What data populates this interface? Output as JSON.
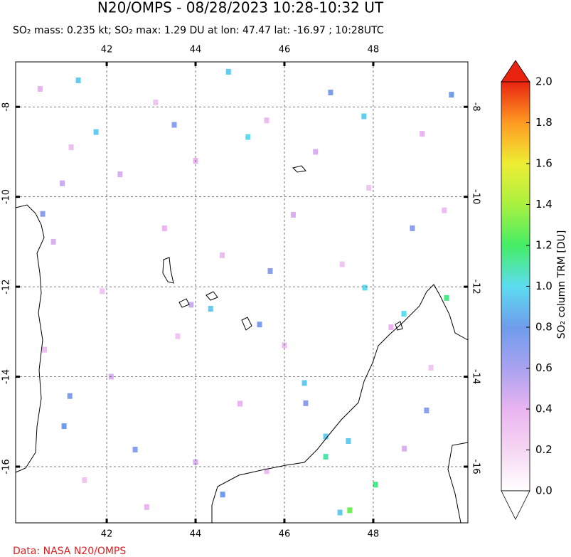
{
  "chart_data": {
    "type": "map",
    "title": "N20/OMPS - 08/28/2023 10:28-10:32 UT",
    "subtitle": "SO₂ mass: 0.235 kt; SO₂ max: 1.29 DU at lon: 47.47 lat: -16.97 ; 10:28UTC",
    "source": "Data: NASA N20/OMPS",
    "xlim": [
      39.95,
      50.13
    ],
    "ylim": [
      -17.25,
      -7.0
    ],
    "xticks": [
      42,
      44,
      46,
      48
    ],
    "yticks": [
      -8,
      -10,
      -12,
      -14,
      -16
    ],
    "grid": true,
    "colorbar": {
      "label": "SO₂ column TRM [DU]",
      "lim": [
        0,
        2
      ],
      "ticks": [
        {
          "value": 0,
          "label": "0.0"
        },
        0.2,
        0.4,
        0.6,
        0.8,
        {
          "value": 1,
          "label": "1.0"
        },
        1.2,
        1.4,
        1.6,
        1.8,
        {
          "value": 2,
          "label": "2.0"
        }
      ],
      "colors": [
        "#ffffff",
        "#f6d6f2",
        "#e9b4f0",
        "#a9a2f0",
        "#6f9cec",
        "#5cdcf0",
        "#44ee66",
        "#aaf040",
        "#eeee33",
        "#ff9a22",
        "#e82410"
      ]
    },
    "pixels": {
      "x": [
        41.36,
        44.74,
        45.18,
        41.76,
        47.79,
        49.76,
        44.34,
        47.81,
        48.69,
        49.65,
        41.17,
        41.04,
        46.45,
        46.93,
        47.44,
        46.93,
        48.05,
        47.47,
        47.25,
        44.61,
        45.44,
        42.64,
        49.2,
        46.48,
        47.04,
        43.52,
        45.68,
        48.88,
        40.56,
        40.5,
        41.2,
        42.3,
        43.1,
        44.0,
        45.6,
        46.7,
        47.9,
        49.1,
        49.6,
        40.8,
        41.9,
        43.3,
        44.6,
        46.2,
        47.3,
        48.4,
        40.6,
        42.1,
        43.6,
        45.0,
        46.0,
        44.0,
        41.5,
        42.9,
        45.6,
        48.7,
        49.3,
        41.0,
        43.9
      ],
      "y": [
        -7.41,
        -7.22,
        -8.67,
        -8.56,
        -8.21,
        -7.73,
        -12.49,
        -12.02,
        -12.6,
        -12.25,
        -14.43,
        -15.1,
        -14.14,
        -15.33,
        -15.43,
        -15.78,
        -16.4,
        -16.97,
        -17.02,
        -16.62,
        -12.84,
        -15.62,
        -14.75,
        -14.59,
        -7.68,
        -8.4,
        -11.65,
        -10.7,
        -10.38,
        -7.6,
        -8.9,
        -9.5,
        -7.9,
        -9.2,
        -8.3,
        -9.0,
        -9.8,
        -8.6,
        -10.3,
        -11.0,
        -12.1,
        -10.7,
        -11.3,
        -10.4,
        -11.5,
        -12.9,
        -13.4,
        -14.0,
        -13.1,
        -14.6,
        -13.3,
        -15.9,
        -16.3,
        -16.9,
        -16.1,
        -15.6,
        -13.8,
        -9.7,
        -12.4
      ],
      "values": [
        0.95,
        0.95,
        1.0,
        0.95,
        0.95,
        0.8,
        0.95,
        1.0,
        1.0,
        1.15,
        0.75,
        0.8,
        0.95,
        0.95,
        0.95,
        1.1,
        1.15,
        1.29,
        0.95,
        0.8,
        0.75,
        0.7,
        0.7,
        0.7,
        0.75,
        0.7,
        0.7,
        0.7,
        0.7,
        0.4,
        0.35,
        0.45,
        0.3,
        0.4,
        0.35,
        0.45,
        0.3,
        0.4,
        0.35,
        0.45,
        0.3,
        0.4,
        0.35,
        0.45,
        0.3,
        0.4,
        0.35,
        0.45,
        0.3,
        0.4,
        0.35,
        0.45,
        0.3,
        0.4,
        0.35,
        0.45,
        0.3,
        0.5,
        0.5
      ]
    }
  }
}
